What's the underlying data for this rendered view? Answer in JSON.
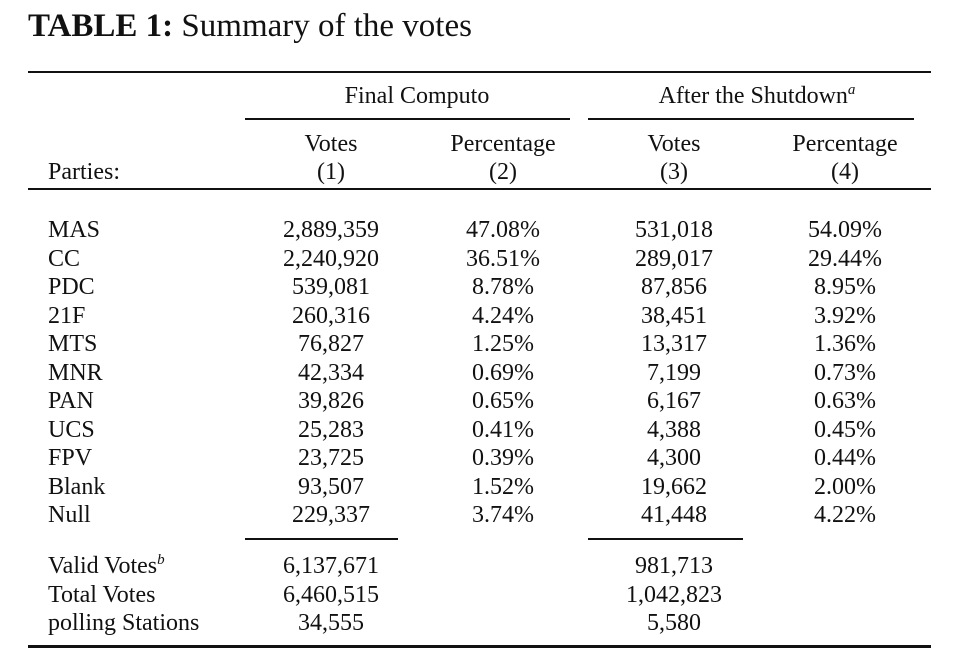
{
  "caption": {
    "label": "TABLE 1:",
    "title": "Summary of the votes"
  },
  "header": {
    "group_1": "Final Computo",
    "group_2": "After the Shutdown",
    "group_2_note": "a",
    "row_label_header": "Parties:",
    "columns": [
      {
        "name": "Votes",
        "number": "(1)"
      },
      {
        "name": "Percentage",
        "number": "(2)"
      },
      {
        "name": "Votes",
        "number": "(3)"
      },
      {
        "name": "Percentage",
        "number": "(4)"
      }
    ]
  },
  "rows": [
    {
      "party": "MAS",
      "votes_final": "2,889,359",
      "pct_final": "47.08%",
      "votes_after": "531,018",
      "pct_after": "54.09%"
    },
    {
      "party": "CC",
      "votes_final": "2,240,920",
      "pct_final": "36.51%",
      "votes_after": "289,017",
      "pct_after": "29.44%"
    },
    {
      "party": "PDC",
      "votes_final": "539,081",
      "pct_final": "8.78%",
      "votes_after": "87,856",
      "pct_after": "8.95%"
    },
    {
      "party": "21F",
      "votes_final": "260,316",
      "pct_final": "4.24%",
      "votes_after": "38,451",
      "pct_after": "3.92%"
    },
    {
      "party": "MTS",
      "votes_final": "76,827",
      "pct_final": "1.25%",
      "votes_after": "13,317",
      "pct_after": "1.36%"
    },
    {
      "party": "MNR",
      "votes_final": "42,334",
      "pct_final": "0.69%",
      "votes_after": "7,199",
      "pct_after": "0.73%"
    },
    {
      "party": "PAN",
      "votes_final": "39,826",
      "pct_final": "0.65%",
      "votes_after": "6,167",
      "pct_after": "0.63%"
    },
    {
      "party": "UCS",
      "votes_final": "25,283",
      "pct_final": "0.41%",
      "votes_after": "4,388",
      "pct_after": "0.45%"
    },
    {
      "party": "FPV",
      "votes_final": "23,725",
      "pct_final": "0.39%",
      "votes_after": "4,300",
      "pct_after": "0.44%"
    },
    {
      "party": "Blank",
      "votes_final": "93,507",
      "pct_final": "1.52%",
      "votes_after": "19,662",
      "pct_after": "2.00%"
    },
    {
      "party": "Null",
      "votes_final": "229,337",
      "pct_final": "3.74%",
      "votes_after": "41,448",
      "pct_after": "4.22%"
    }
  ],
  "totals": [
    {
      "label": "Valid Votes",
      "note": "b",
      "votes_final": "6,137,671",
      "votes_after": "981,713"
    },
    {
      "label": "Total Votes",
      "note": "",
      "votes_final": "6,460,515",
      "votes_after": "1,042,823"
    },
    {
      "label": "polling Stations",
      "note": "",
      "votes_final": "34,555",
      "votes_after": "5,580"
    }
  ]
}
